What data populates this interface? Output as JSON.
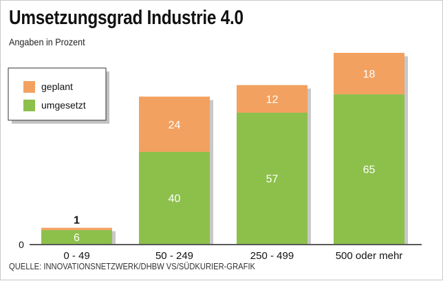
{
  "colors": {
    "planned": "#f3a160",
    "implemented": "#8cc04b",
    "axis": "#222222",
    "grid": "#ffffff"
  },
  "chart_data": {
    "type": "bar",
    "stacked": true,
    "title": "Umsetzungsgrad Industrie 4.0",
    "subtitle": "Angaben in Prozent",
    "source": "QUELLE: INNOVATIONSNETZWERK/DHBW VS/SÜDKURIER-GRAFIK",
    "categories": [
      "0 - 49",
      "50 - 249",
      "250 - 499",
      "500 oder mehr"
    ],
    "series": [
      {
        "name": "umgesetzt",
        "values": [
          6,
          40,
          57,
          65
        ]
      },
      {
        "name": "geplant",
        "values": [
          1,
          24,
          12,
          18
        ]
      }
    ],
    "ylim": [
      0,
      100
    ],
    "yticks": [
      "0"
    ],
    "xlabel": "",
    "ylabel": "",
    "grid": false,
    "legend": {
      "position": "top-left",
      "order": [
        "geplant",
        "umgesetzt"
      ]
    }
  }
}
